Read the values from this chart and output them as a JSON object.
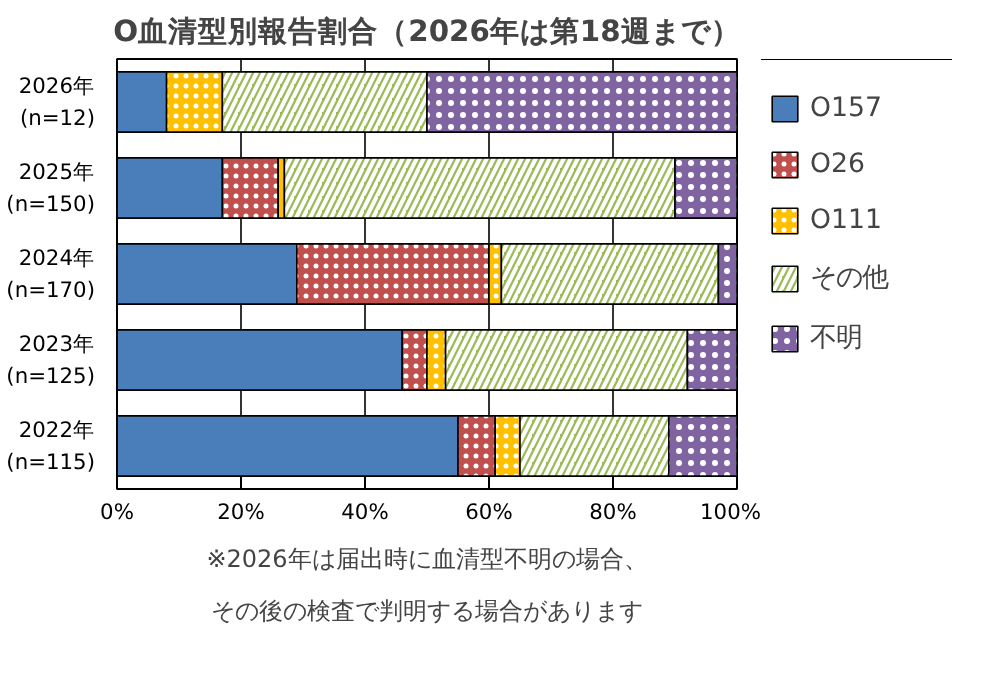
{
  "chart_data": {
    "type": "bar",
    "orientation": "horizontal",
    "stacked": true,
    "title": "O血清型別報告割合（2026年は第18週まで）",
    "categories": [
      "2026年\n(n=12)",
      "2025年\n(n=150)",
      "2024年\n(n=170)",
      "2023年\n(n=125)",
      "2022年\n(n=115)"
    ],
    "series": [
      {
        "name": "O157",
        "color": "#4a7ebb",
        "values": [
          8,
          17,
          29,
          46,
          55
        ]
      },
      {
        "name": "O26",
        "color": "#c0504d",
        "values": [
          null,
          9,
          31,
          4,
          6
        ]
      },
      {
        "name": "O111",
        "color": "#ffc000",
        "values": [
          9,
          1,
          2,
          3,
          4
        ]
      },
      {
        "name": "その他",
        "color": "#9bbb59",
        "values": [
          33,
          63,
          35,
          39,
          24
        ]
      },
      {
        "name": "不明",
        "color": "#8064a2",
        "values": [
          50,
          10,
          3,
          8,
          11
        ]
      }
    ],
    "xlim": [
      0,
      100
    ],
    "xticks": [
      {
        "value": 0,
        "label": "0%"
      },
      {
        "value": 20,
        "label": "20%"
      },
      {
        "value": 40,
        "label": "40%"
      },
      {
        "value": 60,
        "label": "60%"
      },
      {
        "value": 80,
        "label": "80%"
      },
      {
        "value": 100,
        "label": "100%"
      }
    ],
    "grid": "x",
    "legend": "right",
    "annotations": [
      "※2026年は届出時に血清型不明の場合、",
      "その後の検査で判明する場合があります"
    ]
  }
}
